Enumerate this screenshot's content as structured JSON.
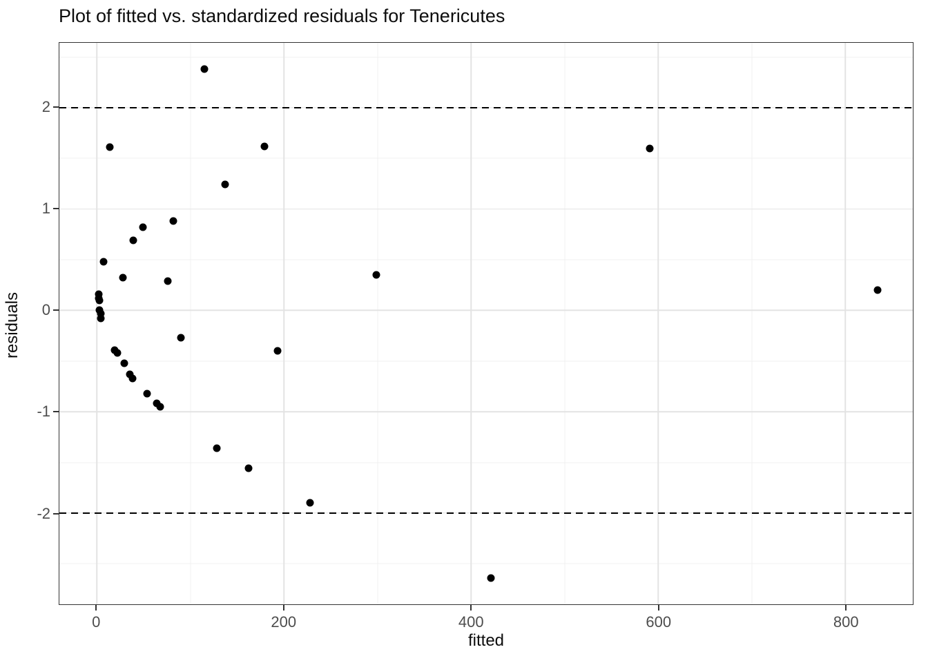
{
  "chart_data": {
    "type": "scatter",
    "title": "Plot of fitted vs. standardized residuals for Tenericutes",
    "xlabel": "fitted",
    "ylabel": "residuals",
    "xlim": [
      -40,
      872
    ],
    "ylim": [
      -2.9,
      2.64
    ],
    "x_ticks": [
      0,
      200,
      400,
      600,
      800
    ],
    "y_ticks": [
      -2,
      -1,
      0,
      1,
      2
    ],
    "x_minor_gridlines": [
      100,
      300,
      500,
      700
    ],
    "y_minor_gridlines": [
      -2.5,
      -1.5,
      -0.5,
      0.5,
      1.5,
      2.5
    ],
    "grid": true,
    "legend_position": "none",
    "threshold_lines": [
      {
        "y": 2,
        "style": "dashed",
        "color": "#000000"
      },
      {
        "y": -2,
        "style": "dashed",
        "color": "#000000"
      }
    ],
    "colors": {
      "point": "#000000",
      "panel_border": "#333333",
      "grid_major": "#e3e3e3",
      "grid_minor": "#f1f1f1",
      "tick_label": "#4d4d4d",
      "title": "#0d0d0d"
    },
    "points": [
      {
        "x": 115,
        "y": 2.38
      },
      {
        "x": 14,
        "y": 1.61
      },
      {
        "x": 179,
        "y": 1.62
      },
      {
        "x": 591,
        "y": 1.6
      },
      {
        "x": 137,
        "y": 1.24
      },
      {
        "x": 82,
        "y": 0.88
      },
      {
        "x": 49,
        "y": 0.82
      },
      {
        "x": 39,
        "y": 0.69
      },
      {
        "x": 7,
        "y": 0.48
      },
      {
        "x": 299,
        "y": 0.35
      },
      {
        "x": 28,
        "y": 0.32
      },
      {
        "x": 76,
        "y": 0.29
      },
      {
        "x": 834,
        "y": 0.2
      },
      {
        "x": 2,
        "y": 0.16
      },
      {
        "x": 2,
        "y": 0.12
      },
      {
        "x": 3,
        "y": 0.1
      },
      {
        "x": 3,
        "y": 0.0
      },
      {
        "x": 4,
        "y": -0.03
      },
      {
        "x": 4,
        "y": -0.08
      },
      {
        "x": 90,
        "y": -0.27
      },
      {
        "x": 19,
        "y": -0.39
      },
      {
        "x": 22,
        "y": -0.42
      },
      {
        "x": 193,
        "y": -0.4
      },
      {
        "x": 29,
        "y": -0.52
      },
      {
        "x": 35,
        "y": -0.63
      },
      {
        "x": 38,
        "y": -0.67
      },
      {
        "x": 54,
        "y": -0.82
      },
      {
        "x": 64,
        "y": -0.92
      },
      {
        "x": 68,
        "y": -0.95
      },
      {
        "x": 128,
        "y": -1.36
      },
      {
        "x": 162,
        "y": -1.56
      },
      {
        "x": 228,
        "y": -1.9
      },
      {
        "x": 421,
        "y": -2.64
      }
    ]
  }
}
